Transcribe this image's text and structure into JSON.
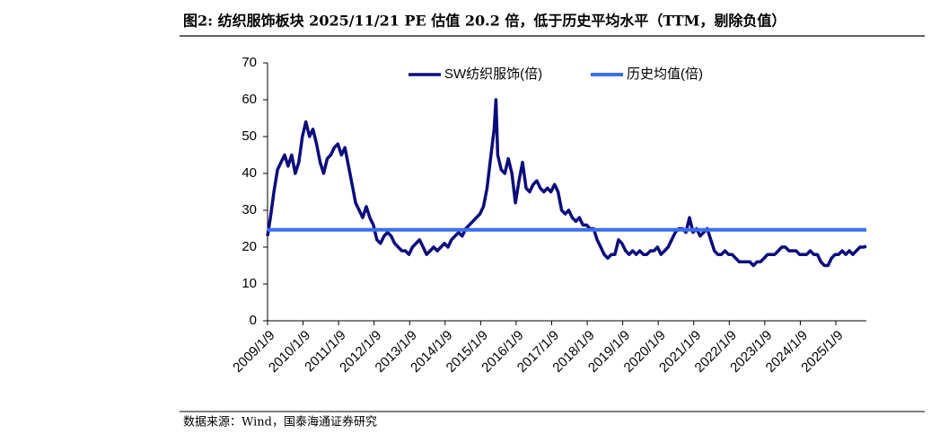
{
  "chart_data": {
    "type": "line",
    "title": "图2:  纺织服饰板块 2025/11/21 PE 估值 20.2 倍，低于历史平均水平（TTM，剔除负值）",
    "source": "数据来源：Wind，国泰海通证券研究",
    "x": [
      2009.02,
      2009.1,
      2009.2,
      2009.3,
      2009.4,
      2009.5,
      2009.6,
      2009.7,
      2009.8,
      2009.9,
      2010.0,
      2010.1,
      2010.2,
      2010.3,
      2010.4,
      2010.5,
      2010.6,
      2010.7,
      2010.8,
      2010.9,
      2011.0,
      2011.1,
      2011.2,
      2011.3,
      2011.4,
      2011.5,
      2011.6,
      2011.7,
      2011.8,
      2011.9,
      2012.0,
      2012.1,
      2012.2,
      2012.3,
      2012.4,
      2012.5,
      2012.6,
      2012.7,
      2012.8,
      2012.9,
      2013.0,
      2013.1,
      2013.2,
      2013.3,
      2013.4,
      2013.5,
      2013.6,
      2013.7,
      2013.8,
      2013.9,
      2014.0,
      2014.1,
      2014.2,
      2014.3,
      2014.4,
      2014.5,
      2014.6,
      2014.7,
      2014.8,
      2014.9,
      2015.0,
      2015.1,
      2015.2,
      2015.3,
      2015.4,
      2015.45,
      2015.5,
      2015.6,
      2015.7,
      2015.8,
      2015.9,
      2016.0,
      2016.1,
      2016.2,
      2016.3,
      2016.4,
      2016.5,
      2016.6,
      2016.7,
      2016.8,
      2016.9,
      2017.0,
      2017.1,
      2017.2,
      2017.3,
      2017.4,
      2017.5,
      2017.6,
      2017.7,
      2017.8,
      2017.9,
      2018.0,
      2018.1,
      2018.2,
      2018.3,
      2018.4,
      2018.5,
      2018.6,
      2018.7,
      2018.8,
      2018.9,
      2019.0,
      2019.1,
      2019.2,
      2019.3,
      2019.4,
      2019.5,
      2019.6,
      2019.7,
      2019.8,
      2019.9,
      2020.0,
      2020.1,
      2020.2,
      2020.3,
      2020.4,
      2020.5,
      2020.6,
      2020.7,
      2020.8,
      2020.9,
      2021.0,
      2021.1,
      2021.2,
      2021.3,
      2021.4,
      2021.5,
      2021.6,
      2021.7,
      2021.8,
      2021.9,
      2022.0,
      2022.1,
      2022.2,
      2022.3,
      2022.4,
      2022.5,
      2022.6,
      2022.7,
      2022.8,
      2022.9,
      2023.0,
      2023.1,
      2023.2,
      2023.3,
      2023.4,
      2023.5,
      2023.6,
      2023.7,
      2023.8,
      2023.9,
      2024.0,
      2024.1,
      2024.2,
      2024.3,
      2024.4,
      2024.5,
      2024.6,
      2024.7,
      2024.8,
      2024.9,
      2025.0,
      2025.1,
      2025.2,
      2025.3,
      2025.4,
      2025.5,
      2025.6,
      2025.7,
      2025.8,
      2025.88
    ],
    "series": [
      {
        "name": "SW纺织服饰(倍)",
        "color": "#0c0c7c",
        "values": [
          23,
          28,
          35,
          41,
          43,
          45,
          42,
          45,
          40,
          43,
          50,
          54,
          50,
          52,
          48,
          43,
          40,
          44,
          45,
          47,
          48,
          45,
          47,
          42,
          37,
          32,
          30,
          28,
          31,
          28,
          26,
          22,
          21,
          23,
          24,
          23,
          21,
          20,
          19,
          19,
          18,
          20,
          21,
          22,
          20,
          18,
          19,
          20,
          19,
          20,
          21,
          20,
          22,
          23,
          24,
          23,
          25,
          26,
          27,
          28,
          29,
          31,
          36,
          44,
          52,
          60,
          45,
          41,
          40,
          44,
          40,
          32,
          38,
          43,
          36,
          35,
          37,
          38,
          36,
          35,
          36,
          35,
          37,
          35,
          30,
          29,
          30,
          28,
          27,
          28,
          26,
          26,
          25,
          25,
          22,
          20,
          18,
          17,
          18,
          18,
          22,
          21,
          19,
          18,
          19,
          18,
          19,
          18,
          18,
          19,
          19,
          20,
          18,
          19,
          20,
          22,
          24,
          25,
          25,
          24,
          28,
          24,
          25,
          23,
          24,
          25,
          22,
          19,
          18,
          18,
          19,
          18,
          18,
          17,
          16,
          16,
          16,
          16,
          15,
          16,
          16,
          17,
          18,
          18,
          18,
          19,
          20,
          20,
          19,
          19,
          19,
          18,
          18,
          18,
          19,
          18,
          18,
          16,
          15,
          15,
          17,
          18,
          18,
          19,
          18,
          19,
          18,
          19,
          20,
          20,
          20.2
        ]
      },
      {
        "name": "历史均值(倍)",
        "color": "#3b6ef0",
        "x": [
          2009.02,
          2025.88
        ],
        "values": [
          24.7,
          24.7
        ]
      }
    ],
    "xlim": [
      2009.02,
      2025.88
    ],
    "xticks": [
      {
        "value": 2009.02,
        "label": "2009/1/9"
      },
      {
        "value": 2010.02,
        "label": "2010/1/9"
      },
      {
        "value": 2011.02,
        "label": "2011/1/9"
      },
      {
        "value": 2012.02,
        "label": "2012/1/9"
      },
      {
        "value": 2013.02,
        "label": "2013/1/9"
      },
      {
        "value": 2014.02,
        "label": "2014/1/9"
      },
      {
        "value": 2015.02,
        "label": "2015/1/9"
      },
      {
        "value": 2016.02,
        "label": "2016/1/9"
      },
      {
        "value": 2017.02,
        "label": "2017/1/9"
      },
      {
        "value": 2018.02,
        "label": "2018/1/9"
      },
      {
        "value": 2019.02,
        "label": "2019/1/9"
      },
      {
        "value": 2020.02,
        "label": "2020/1/9"
      },
      {
        "value": 2021.02,
        "label": "2021/1/9"
      },
      {
        "value": 2022.02,
        "label": "2022/1/9"
      },
      {
        "value": 2023.02,
        "label": "2023/1/9"
      },
      {
        "value": 2024.02,
        "label": "2024/1/9"
      },
      {
        "value": 2025.02,
        "label": "2025/1/9"
      }
    ],
    "ylim": [
      0,
      70
    ],
    "yticks": [
      0,
      10,
      20,
      30,
      40,
      50,
      60,
      70
    ],
    "legend": "top"
  }
}
